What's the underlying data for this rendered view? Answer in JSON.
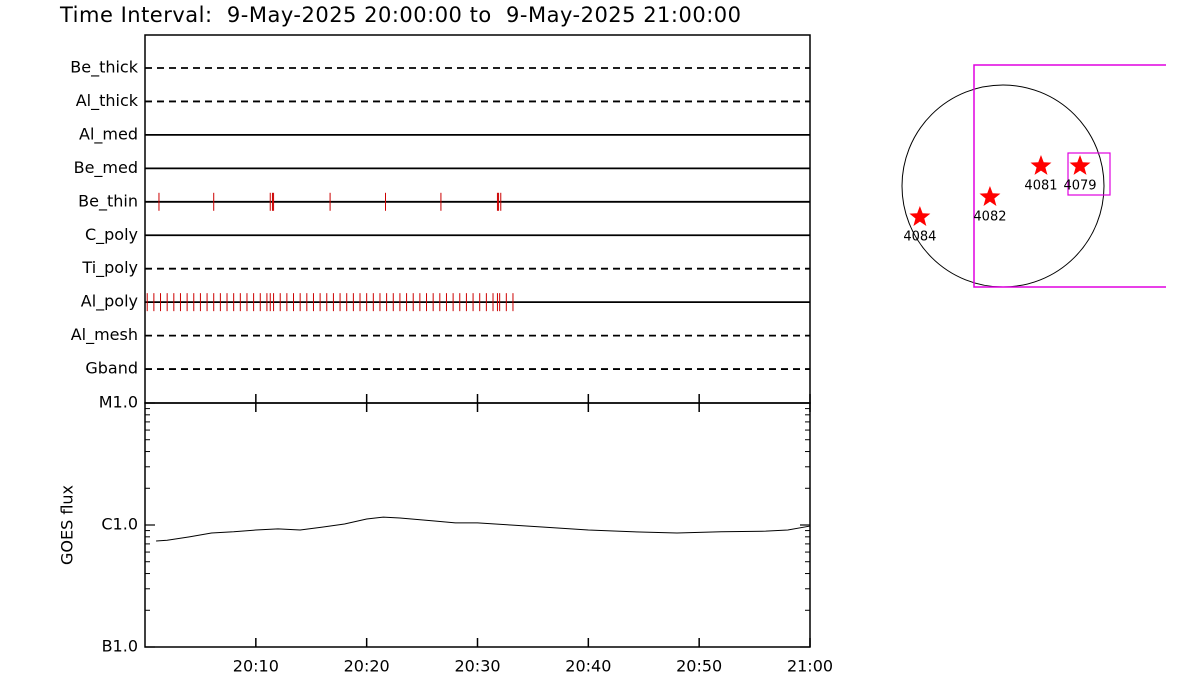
{
  "title": "Time Interval:  9-May-2025 20:00:00 to  9-May-2025 21:00:00",
  "chart_data": [
    {
      "type": "timeline",
      "categories": [
        "Be_thick",
        "Al_thick",
        "Al_med",
        "Be_med",
        "Be_thin",
        "C_poly",
        "Ti_poly",
        "Al_poly",
        "Al_mesh",
        "Gband"
      ],
      "line_styles": [
        "dashed",
        "dashed",
        "solid",
        "solid",
        "solid",
        "solid",
        "dashed",
        "solid",
        "dashed",
        "dashed"
      ],
      "event_color": "#cc0000",
      "xlim": [
        0,
        60
      ],
      "events": [
        [],
        [],
        [],
        [],
        [
          1.26,
          6.2,
          11.3,
          11.5,
          11.6,
          16.7,
          21.7,
          26.7,
          31.8,
          31.9,
          32.1
        ],
        [],
        [],
        [
          0.2,
          0.8,
          1.4,
          2,
          2.6,
          3.2,
          3.8,
          4.4,
          5,
          5.6,
          6.2,
          6.8,
          7.4,
          8,
          8.6,
          9.2,
          9.8,
          10.4,
          11,
          11.3,
          11.6,
          12.2,
          12.8,
          13.4,
          14,
          14.6,
          15.2,
          15.8,
          16.4,
          17,
          17.6,
          18.2,
          18.8,
          19.4,
          20,
          20.6,
          21.2,
          21.8,
          22.4,
          23,
          23.6,
          24.2,
          24.8,
          25.4,
          26,
          26.6,
          27.2,
          27.8,
          28.4,
          29,
          29.6,
          30.2,
          30.8,
          31.4,
          31.8,
          32,
          32.6,
          33.2
        ],
        [],
        []
      ]
    },
    {
      "type": "line",
      "y_label": "GOES flux",
      "log_scale": true,
      "color": "#000000",
      "xlim": [
        0,
        60
      ],
      "ylim": [
        1e-07,
        1e-05
      ],
      "yticks": [
        {
          "value": 1e-07,
          "label": "B1.0"
        },
        {
          "value": 1e-06,
          "label": "C1.0"
        },
        {
          "value": 1e-05,
          "label": "M1.0"
        }
      ],
      "xticks": [
        {
          "value": 10,
          "label": "20:10"
        },
        {
          "value": 20,
          "label": "20:20"
        },
        {
          "value": 30,
          "label": "20:30"
        },
        {
          "value": 40,
          "label": "20:40"
        },
        {
          "value": 50,
          "label": "20:50"
        },
        {
          "value": 60,
          "label": "21:00"
        }
      ],
      "x": [
        1,
        2,
        4,
        6,
        8,
        10,
        12,
        14,
        16,
        18,
        20,
        21.5,
        23,
        26,
        28,
        30,
        33,
        36,
        40,
        44,
        48,
        52,
        56,
        58,
        60
      ],
      "values": [
        7.4e-07,
        7.5e-07,
        8e-07,
        8.6e-07,
        8.8e-07,
        9.1e-07,
        9.3e-07,
        9.1e-07,
        9.6e-07,
        1.02e-06,
        1.12e-06,
        1.16e-06,
        1.14e-06,
        1.08e-06,
        1.04e-06,
        1.04e-06,
        1e-06,
        9.6e-07,
        9.1e-07,
        8.8e-07,
        8.6e-07,
        8.8e-07,
        8.9e-07,
        9.1e-07,
        9.8e-07
      ]
    },
    {
      "type": "scatter",
      "color": "#ff0000",
      "labels": [
        "4084",
        "4082",
        "4081",
        "4079"
      ],
      "x": [
        -790,
        -124,
        361,
        732
      ],
      "y": [
        -295,
        -105,
        190,
        190
      ]
    }
  ]
}
